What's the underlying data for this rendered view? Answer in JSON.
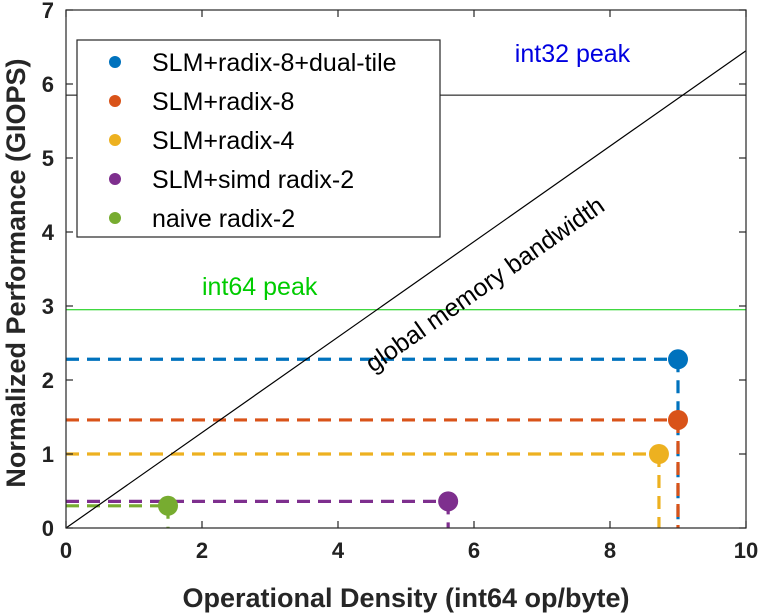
{
  "chart_data": {
    "type": "scatter",
    "xlabel": "Operational Density (int64 op/byte)",
    "ylabel": "Normalized Performance (GIOPS)",
    "xlim": [
      0,
      10
    ],
    "ylim": [
      0,
      7
    ],
    "x_ticks": [
      0,
      2,
      4,
      6,
      8,
      10
    ],
    "y_ticks": [
      0,
      1,
      2,
      3,
      4,
      5,
      6,
      7
    ],
    "grid": false,
    "legend_position": "top-left",
    "series": [
      {
        "name": "SLM+radix-8+dual-tile",
        "color": "#0072BD",
        "x": 9.0,
        "y": 2.28
      },
      {
        "name": "SLM+radix-8",
        "color": "#D95319",
        "x": 9.0,
        "y": 1.46
      },
      {
        "name": "SLM+radix-4",
        "color": "#EDB120",
        "x": 8.72,
        "y": 1.0
      },
      {
        "name": "SLM+simd radix-2",
        "color": "#7E2F8E",
        "x": 5.62,
        "y": 0.36
      },
      {
        "name": "naive radix-2",
        "color": "#77AC30",
        "x": 1.5,
        "y": 0.3
      }
    ],
    "reference_lines": [
      {
        "label": "int32 peak",
        "y": 5.85,
        "line_color": "#000000",
        "label_color": "#0000E0",
        "label_x": 6.6,
        "label_y": 6.3
      },
      {
        "label": "int64 peak",
        "y": 2.95,
        "line_color": "#00CC00",
        "label_color": "#00CC00",
        "label_x": 2.0,
        "label_y": 3.15
      }
    ],
    "bandwidth_line": {
      "label": "global memory bandwidth",
      "from": [
        0,
        0
      ],
      "to": [
        10,
        6.45
      ],
      "color": "#000000"
    }
  }
}
